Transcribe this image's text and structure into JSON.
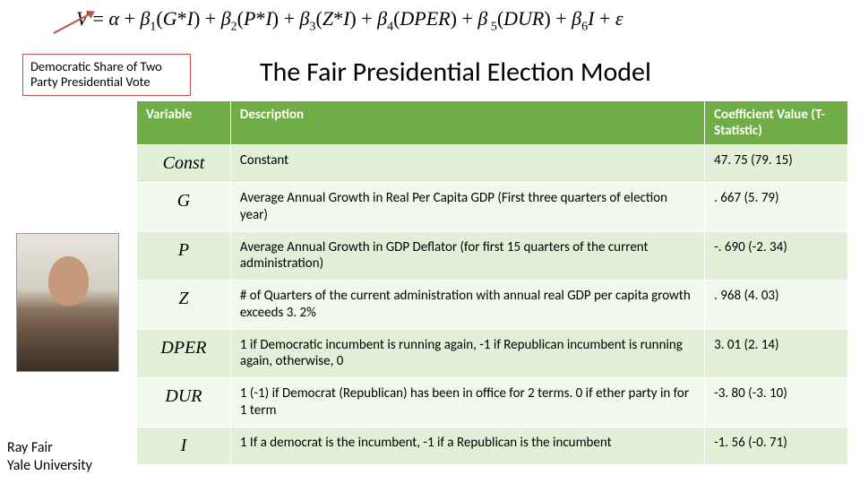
{
  "equation": "V = α + β₁(G*I) + β₂(P*I) + β₃(Z*I) + β₄(DPER) + β₅(DUR) + β₆I + ε",
  "callout": "Democratic Share of Two Party Presidential Vote",
  "title": "The Fair Presidential Election Model",
  "caption_line1": "Ray Fair",
  "caption_line2": "Yale University",
  "table": {
    "headers": {
      "variable": "Variable",
      "description": "Description",
      "coefficient": "Coefficient Value (T-Statistic)"
    },
    "header_bg": "#70ad47",
    "header_fg": "#ffffff",
    "row_bg_odd": "#e2efd9",
    "row_bg_even": "#f1f8ec",
    "rows": [
      {
        "variable": "Const",
        "description": "Constant",
        "coef": "47. 75 (79. 15)"
      },
      {
        "variable": "G",
        "description": "Average Annual Growth in Real Per Capita GDP (First three quarters of election year)",
        "coef": ". 667 (5. 79)"
      },
      {
        "variable": "P",
        "description": "Average Annual Growth in GDP Deflator (for first 15 quarters of the current administration)",
        "coef": "-. 690 (-2. 34)"
      },
      {
        "variable": "Z",
        "description": "# of Quarters of the current administration with annual real GDP per capita growth exceeds 3. 2%",
        "coef": ". 968 (4. 03)"
      },
      {
        "variable": "DPER",
        "description": "1 if Democratic incumbent is running again, -1 if Republican incumbent is running again, otherwise, 0",
        "coef": "3. 01 (2. 14)"
      },
      {
        "variable": "DUR",
        "description": "1 (-1) if Democrat (Republican) has been in office for 2 terms. 0 if ether party in for 1 term",
        "coef": "-3. 80 (-3. 10)"
      },
      {
        "variable": "I",
        "description": "1 If a democrat is the incumbent, -1 if a Republican is the incumbent",
        "coef": "-1. 56 (-0. 71)"
      }
    ]
  },
  "callout_border_color": "#c0504d"
}
